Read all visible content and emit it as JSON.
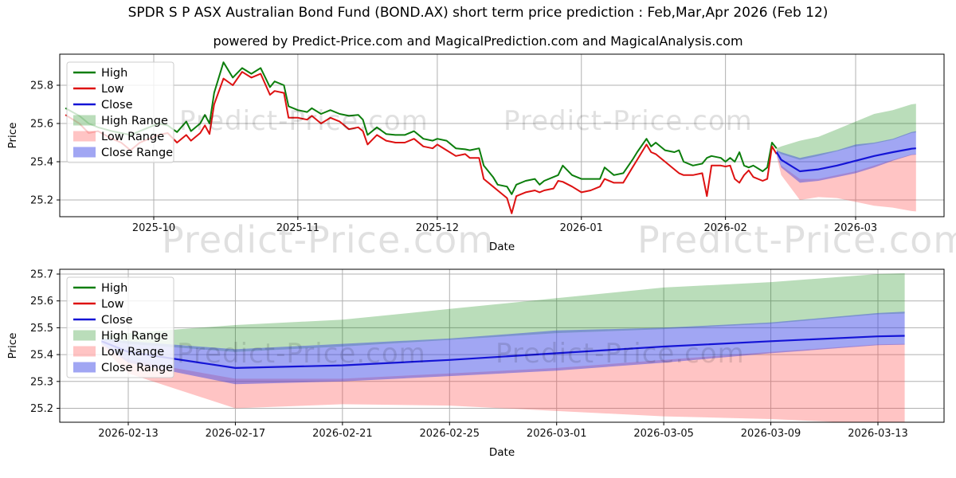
{
  "title": "SPDR S P ASX Australian Bond Fund (BOND.AX) short term price prediction : Feb,Mar,Apr 2026 (Feb 12)",
  "subtitle": "powered by Predict-Price.com and MagicalPrediction.com and MagicalAnalysis.com",
  "watermark": {
    "text": "Predict-Price.com"
  },
  "colors": {
    "high": "#0c7e0c",
    "low": "#dd1111",
    "close": "#1414d6",
    "high_range": "rgba(0,128,0,0.27)",
    "low_range": "rgba(255,70,70,0.32)",
    "close_range": "rgba(55,65,230,0.47)",
    "grid": "#b0b0b0",
    "spine": "#000000",
    "tick_text": "#111111",
    "legend_border": "#cccccc"
  },
  "legend": {
    "items": [
      {
        "label": "High",
        "kind": "line",
        "color": "high"
      },
      {
        "label": "Low",
        "kind": "line",
        "color": "low"
      },
      {
        "label": "Close",
        "kind": "line",
        "color": "close"
      },
      {
        "label": "High Range",
        "kind": "patch",
        "color": "high_range"
      },
      {
        "label": "Low Range",
        "kind": "patch",
        "color": "low_range"
      },
      {
        "label": "Close Range",
        "kind": "patch",
        "color": "close_range"
      }
    ]
  },
  "chart_data": [
    {
      "type": "line",
      "name": "history-with-forecast",
      "xlabel": "Date",
      "ylabel": "Price",
      "x_ticks": [
        {
          "date": "2025-10-01",
          "label": "2025-10"
        },
        {
          "date": "2025-11-01",
          "label": "2025-11"
        },
        {
          "date": "2025-12-01",
          "label": "2025-12"
        },
        {
          "date": "2026-01-01",
          "label": "2026-01"
        },
        {
          "date": "2026-02-01",
          "label": "2026-02"
        },
        {
          "date": "2026-03-01",
          "label": "2026-03"
        }
      ],
      "y_ticks": [
        25.2,
        25.4,
        25.6,
        25.8
      ],
      "ylim": [
        25.13,
        25.97
      ],
      "grid": true,
      "legend_position": "upper-left",
      "series_names": [
        "High",
        "Low",
        "Close",
        "High Range",
        "Low Range",
        "Close Range"
      ],
      "history": {
        "dates": [
          "2025-09-12",
          "2025-09-15",
          "2025-09-17",
          "2025-09-19",
          "2025-09-22",
          "2025-09-24",
          "2025-09-26",
          "2025-09-28",
          "2025-09-30",
          "2025-10-02",
          "2025-10-04",
          "2025-10-06",
          "2025-10-08",
          "2025-10-09",
          "2025-10-11",
          "2025-10-12",
          "2025-10-13",
          "2025-10-14",
          "2025-10-16",
          "2025-10-18",
          "2025-10-20",
          "2025-10-22",
          "2025-10-24",
          "2025-10-26",
          "2025-10-27",
          "2025-10-29",
          "2025-10-30",
          "2025-11-01",
          "2025-11-03",
          "2025-11-04",
          "2025-11-06",
          "2025-11-08",
          "2025-11-10",
          "2025-11-12",
          "2025-11-14",
          "2025-11-15",
          "2025-11-16",
          "2025-11-18",
          "2025-11-20",
          "2025-11-22",
          "2025-11-24",
          "2025-11-26",
          "2025-11-28",
          "2025-11-30",
          "2025-12-01",
          "2025-12-03",
          "2025-12-05",
          "2025-12-07",
          "2025-12-08",
          "2025-12-10",
          "2025-12-11",
          "2025-12-13",
          "2025-12-14",
          "2025-12-16",
          "2025-12-17",
          "2025-12-18",
          "2025-12-20",
          "2025-12-22",
          "2025-12-23",
          "2025-12-24",
          "2025-12-26",
          "2025-12-27",
          "2025-12-28",
          "2025-12-30",
          "2026-01-01",
          "2026-01-03",
          "2026-01-05",
          "2026-01-06",
          "2026-01-08",
          "2026-01-10",
          "2026-01-12",
          "2026-01-13",
          "2026-01-15",
          "2026-01-16",
          "2026-01-17",
          "2026-01-19",
          "2026-01-21",
          "2026-01-22",
          "2026-01-23",
          "2026-01-25",
          "2026-01-27",
          "2026-01-28",
          "2026-01-29",
          "2026-01-31",
          "2026-02-01",
          "2026-02-02",
          "2026-02-03",
          "2026-02-04",
          "2026-02-05",
          "2026-02-06",
          "2026-02-07",
          "2026-02-09",
          "2026-02-10",
          "2026-02-11",
          "2026-02-12"
        ],
        "high": [
          25.68,
          25.64,
          25.6,
          25.58,
          25.56,
          25.55,
          25.54,
          25.56,
          25.58,
          25.6,
          25.59,
          25.555,
          25.61,
          25.56,
          25.6,
          25.645,
          25.6,
          25.76,
          25.92,
          25.84,
          25.89,
          25.86,
          25.89,
          25.79,
          25.82,
          25.8,
          25.69,
          25.67,
          25.66,
          25.68,
          25.65,
          25.67,
          25.65,
          25.64,
          25.645,
          25.62,
          25.54,
          25.58,
          25.545,
          25.54,
          25.54,
          25.56,
          25.52,
          25.51,
          25.52,
          25.51,
          25.47,
          25.465,
          25.46,
          25.47,
          25.38,
          25.32,
          25.28,
          25.27,
          25.23,
          25.28,
          25.3,
          25.31,
          25.28,
          25.3,
          25.32,
          25.33,
          25.38,
          25.33,
          25.31,
          25.31,
          25.31,
          25.37,
          25.33,
          25.34,
          25.41,
          25.45,
          25.52,
          25.48,
          25.5,
          25.46,
          25.45,
          25.46,
          25.4,
          25.38,
          25.39,
          25.42,
          25.43,
          25.42,
          25.4,
          25.42,
          25.4,
          25.45,
          25.38,
          25.37,
          25.38,
          25.35,
          25.37,
          25.5,
          25.47
        ],
        "low": [
          25.645,
          25.6,
          25.55,
          25.56,
          25.52,
          25.5,
          25.46,
          25.5,
          25.52,
          25.54,
          25.55,
          25.5,
          25.54,
          25.51,
          25.55,
          25.59,
          25.545,
          25.7,
          25.835,
          25.8,
          25.87,
          25.84,
          25.86,
          25.75,
          25.77,
          25.76,
          25.63,
          25.63,
          25.62,
          25.64,
          25.6,
          25.63,
          25.61,
          25.57,
          25.58,
          25.56,
          25.49,
          25.54,
          25.51,
          25.5,
          25.5,
          25.52,
          25.48,
          25.47,
          25.49,
          25.46,
          25.43,
          25.44,
          25.42,
          25.42,
          25.31,
          25.27,
          25.25,
          25.21,
          25.13,
          25.22,
          25.24,
          25.25,
          25.24,
          25.25,
          25.26,
          25.3,
          25.295,
          25.27,
          25.24,
          25.25,
          25.27,
          25.31,
          25.29,
          25.29,
          25.37,
          25.41,
          25.49,
          25.45,
          25.44,
          25.4,
          25.36,
          25.34,
          25.33,
          25.33,
          25.34,
          25.22,
          25.38,
          25.38,
          25.375,
          25.38,
          25.31,
          25.29,
          25.33,
          25.355,
          25.32,
          25.3,
          25.31,
          25.48,
          25.44
        ]
      },
      "forecast_overlay": true
    },
    {
      "type": "area",
      "name": "forecast-detail",
      "xlabel": "Date",
      "ylabel": "Price",
      "x_ticks": [
        {
          "date": "2026-02-13",
          "label": "2026-02-13"
        },
        {
          "date": "2026-02-17",
          "label": "2026-02-17"
        },
        {
          "date": "2026-02-21",
          "label": "2026-02-21"
        },
        {
          "date": "2026-02-25",
          "label": "2026-02-25"
        },
        {
          "date": "2026-03-01",
          "label": "2026-03-01"
        },
        {
          "date": "2026-03-05",
          "label": "2026-03-05"
        },
        {
          "date": "2026-03-09",
          "label": "2026-03-09"
        },
        {
          "date": "2026-03-13",
          "label": "2026-03-13"
        }
      ],
      "y_ticks": [
        25.2,
        25.3,
        25.4,
        25.5,
        25.6,
        25.7
      ],
      "ylim": [
        25.15,
        25.72
      ],
      "grid": true,
      "legend_position": "upper-left",
      "forecast": {
        "dates": [
          "2026-02-12",
          "2026-02-13",
          "2026-02-17",
          "2026-02-21",
          "2026-02-25",
          "2026-03-01",
          "2026-03-05",
          "2026-03-09",
          "2026-03-13",
          "2026-03-14"
        ],
        "close": [
          25.45,
          25.41,
          25.35,
          25.36,
          25.38,
          25.405,
          25.43,
          25.45,
          25.468,
          25.47
        ],
        "close_hi": [
          25.46,
          25.45,
          25.42,
          25.44,
          25.46,
          25.49,
          25.5,
          25.52,
          25.555,
          25.56
        ],
        "close_lo": [
          25.44,
          25.37,
          25.29,
          25.3,
          25.32,
          25.34,
          25.37,
          25.405,
          25.435,
          25.437
        ],
        "high_hi": [
          25.47,
          25.48,
          25.51,
          25.53,
          25.57,
          25.61,
          25.65,
          25.67,
          25.7,
          25.703
        ],
        "high_lo": [
          25.455,
          25.44,
          25.41,
          25.43,
          25.455,
          25.48,
          25.495,
          25.515,
          25.55,
          25.553
        ],
        "low_hi": [
          25.44,
          25.38,
          25.31,
          25.31,
          25.33,
          25.35,
          25.38,
          25.41,
          25.438,
          25.44
        ],
        "low_lo": [
          25.43,
          25.33,
          25.2,
          25.215,
          25.21,
          25.19,
          25.17,
          25.16,
          25.142,
          25.14
        ]
      }
    }
  ]
}
